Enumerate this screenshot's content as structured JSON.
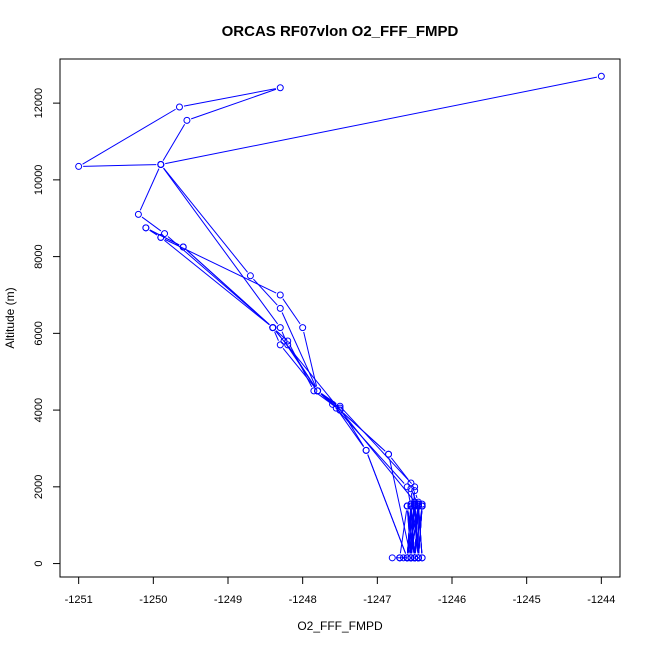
{
  "chart_data": {
    "type": "line",
    "title": "ORCAS RF07vlon O2_FFF_FMPD",
    "xlabel": "O2_FFF_FMPD",
    "ylabel": "Altitude (m)",
    "xlim": [
      -1251.25,
      -1243.75
    ],
    "ylim": [
      -350,
      13150
    ],
    "x_ticks": [
      -1251,
      -1250,
      -1249,
      -1248,
      -1247,
      -1246,
      -1245,
      -1244
    ],
    "x_tick_labels": [
      "-1251",
      "-1250",
      "-1249",
      "-1248",
      "-1247",
      "-1246",
      "-1245",
      "-1244"
    ],
    "y_ticks": [
      0,
      2000,
      4000,
      6000,
      8000,
      10000,
      12000
    ],
    "y_tick_labels": [
      "0",
      "2000",
      "4000",
      "6000",
      "8000",
      "10000",
      "12000"
    ],
    "grid": false,
    "line_color": "#0000ff",
    "marker": "open-circle",
    "series": [
      {
        "x": [
          -1246.8,
          -1246.55,
          -1246.5,
          -1246.45,
          -1246.55,
          -1246.5,
          -1246.45,
          -1246.5,
          -1246.55,
          -1246.6,
          -1246.55,
          -1246.5,
          -1246.45,
          -1246.4,
          -1246.45,
          -1246.5,
          -1246.6,
          -1246.45,
          -1246.55,
          -1246.5,
          -1246.55,
          -1246.6,
          -1246.5,
          -1246.45,
          -1246.55,
          -1246.7,
          -1246.6,
          -1246.5,
          -1246.4,
          -1246.45,
          -1246.5,
          -1246.55,
          -1246.5,
          -1246.45,
          -1246.4,
          -1246.45,
          -1246.45,
          -1246.5,
          -1246.55,
          -1246.85,
          -1247.5,
          -1247.85,
          -1248.2,
          -1248.4,
          -1249.6,
          -1250.1,
          -1249.9,
          -1248.4,
          -1246.45,
          -1246.55,
          -1246.45,
          -1246.4,
          -1246.45,
          -1246.5,
          -1246.55,
          -1246.6,
          -1246.5,
          -1246.45,
          -1246.4,
          -1246.45,
          -1246.5,
          -1246.55,
          -1246.5,
          -1246.55,
          -1246.6,
          -1247.15,
          -1247.55,
          -1247.8,
          -1248.3,
          -1248.4,
          -1249.85,
          -1250.2,
          -1249.9,
          -1248.7,
          -1248.3,
          -1247.8,
          -1247.6,
          -1246.6,
          -1246.55,
          -1246.5,
          -1246.45,
          -1246.5,
          -1246.55,
          -1246.6,
          -1246.55,
          -1246.55,
          -1246.6,
          -1246.7,
          -1246.65,
          -1246.6,
          -1246.55,
          -1246.5,
          -1246.45,
          -1246.5,
          -1246.55,
          -1246.5,
          -1246.55,
          -1246.6,
          -1246.55,
          -1246.5,
          -1246.45,
          -1246.4,
          -1246.45,
          -1246.5,
          -1246.55,
          -1246.6,
          -1246.5,
          -1246.45,
          -1246.4,
          -1246.45,
          -1246.5,
          -1246.55,
          -1246.5,
          -1246.45,
          -1246.5,
          -1246.55,
          -1246.5,
          -1246.45,
          -1246.5,
          -1246.55,
          -1246.85,
          -1247.5,
          -1247.8,
          -1248.25,
          -1248.4,
          -1249.6,
          -1250.1,
          -1249.9,
          -1248.3,
          -1248.0,
          -1247.8,
          -1247.5,
          -1246.5,
          -1246.55,
          -1246.5,
          -1246.45,
          -1246.5,
          -1246.55,
          -1246.45,
          -1246.5,
          -1246.55,
          -1246.6,
          -1246.7,
          -1246.6,
          -1246.5,
          -1246.55,
          -1246.5,
          -1246.45,
          -1246.5,
          -1246.55,
          -1246.6,
          -1247.15,
          -1247.5,
          -1247.8,
          -1248.2,
          -1248.3,
          -1249.9,
          -1251.0,
          -1249.65,
          -1248.3,
          -1249.55,
          -1249.9,
          -1244.0
        ],
        "y": [
          150,
          150,
          150,
          150,
          150,
          150,
          150,
          150,
          150,
          150,
          150,
          1500,
          1500,
          1500,
          150,
          1500,
          150,
          1500,
          150,
          1550,
          150,
          1500,
          150,
          1550,
          150,
          150,
          1500,
          150,
          1500,
          1550,
          150,
          1500,
          150,
          1500,
          1550,
          150,
          1600,
          1900,
          2100,
          2850,
          4000,
          4500,
          5800,
          6150,
          8250,
          8750,
          8500,
          6150,
          1500,
          1950,
          150,
          1500,
          150,
          1600,
          150,
          1500,
          150,
          1550,
          150,
          1500,
          150,
          1500,
          150,
          1550,
          150,
          2950,
          4050,
          4500,
          5700,
          6150,
          8600,
          9100,
          10400,
          7500,
          6650,
          4500,
          4150,
          2000,
          1500,
          150,
          1550,
          150,
          1500,
          150,
          1500,
          150,
          150,
          150,
          150,
          150,
          150,
          150,
          150,
          150,
          150,
          150,
          150,
          150,
          1500,
          150,
          1550,
          150,
          1500,
          150,
          1500,
          150,
          1600,
          150,
          1500,
          150,
          1550,
          150,
          1500,
          150,
          1550,
          150,
          1500,
          150,
          1500,
          150,
          2850,
          4000,
          4500,
          5800,
          6150,
          8250,
          8750,
          8500,
          7000,
          6150,
          4500,
          4100,
          2000,
          150,
          1500,
          150,
          1550,
          150,
          1500,
          150,
          1550,
          150,
          150,
          150,
          150,
          150,
          150,
          150,
          150,
          150,
          150,
          2950,
          4050,
          4500,
          5700,
          6150,
          10400,
          10350,
          11900,
          12400,
          11550,
          10400,
          12700
        ]
      }
    ]
  }
}
